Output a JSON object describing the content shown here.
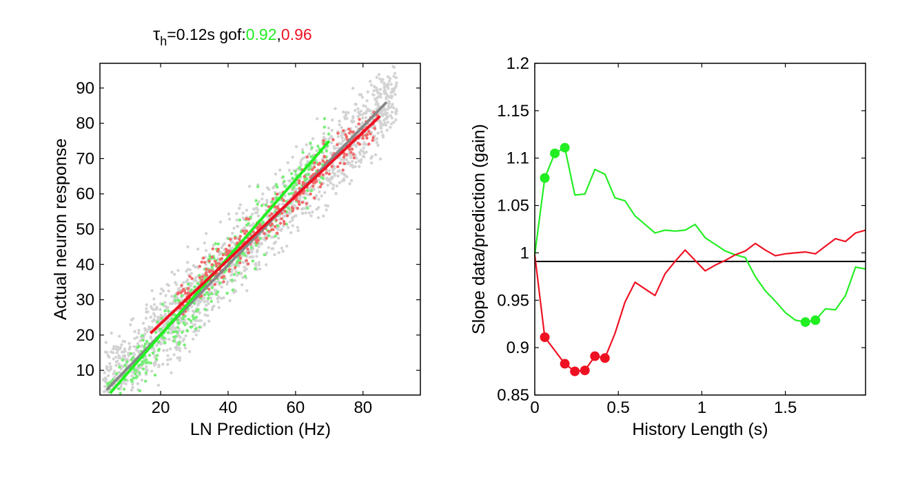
{
  "colors": {
    "green": "#22ee22",
    "red": "#ee1122",
    "gray_fit": "#888888",
    "scatter_gray": "#d3d3d3",
    "scatter_green": "#77ee77",
    "scatter_red": "#f26a6a",
    "baseline": "#000000"
  },
  "title": {
    "tau_symbol": "τ",
    "tau_subscript": "h",
    "tau_value": "=0.12s  gof:",
    "gof_green": "0.92",
    "separator": ",",
    "gof_red": "0.96"
  },
  "chart_data": [
    {
      "type": "scatter",
      "xlabel": "LN Prediction (Hz)",
      "ylabel": "Actual neuron response",
      "xlim": [
        2,
        97
      ],
      "ylim": [
        3,
        97
      ],
      "x_ticks": [
        20,
        40,
        60,
        80
      ],
      "y_ticks": [
        10,
        20,
        30,
        40,
        50,
        60,
        70,
        80,
        90
      ],
      "grid": false,
      "scatter_series": [
        {
          "color_key": "scatter_gray",
          "count": 1600,
          "x_range": [
            3,
            90
          ],
          "slope": 0.97,
          "intercept": 1.5,
          "spread": 8
        },
        {
          "color_key": "scatter_green",
          "count": 420,
          "x_range": [
            3,
            70
          ],
          "slope": 1.09,
          "intercept": -3,
          "spread": 6
        },
        {
          "color_key": "scatter_red",
          "count": 340,
          "x_range": [
            25,
            85
          ],
          "slope": 0.88,
          "intercept": 7,
          "spread": 4
        }
      ],
      "fit_lines": [
        {
          "color_key": "gray_fit",
          "x": [
            4,
            87
          ],
          "y": [
            4.5,
            86
          ]
        },
        {
          "color_key": "green",
          "x": [
            5,
            70
          ],
          "y": [
            3.5,
            75
          ]
        },
        {
          "color_key": "red",
          "x": [
            17,
            85
          ],
          "y": [
            20.5,
            82
          ]
        }
      ]
    },
    {
      "type": "line",
      "xlabel": "History Length (s)",
      "ylabel": "Slope data/prediction (gain)",
      "xlim": [
        0,
        1.98
      ],
      "ylim": [
        0.85,
        1.2
      ],
      "x_ticks": [
        0,
        0.5,
        1,
        1.5
      ],
      "x_tick_labels": [
        "0",
        "0.5",
        "1",
        "1.5"
      ],
      "y_ticks": [
        0.85,
        0.9,
        0.95,
        1,
        1.05,
        1.1,
        1.15,
        1.2
      ],
      "y_tick_labels": [
        "0.85",
        "0.9",
        "0.95",
        "1",
        "1.05",
        "1.1",
        "1.15",
        "1.2"
      ],
      "grid": false,
      "baseline": 0.991,
      "series": [
        {
          "color_key": "green",
          "x": [
            0,
            0.06,
            0.12,
            0.18,
            0.24,
            0.3,
            0.36,
            0.42,
            0.48,
            0.54,
            0.6,
            0.66,
            0.72,
            0.78,
            0.84,
            0.9,
            0.96,
            1.02,
            1.08,
            1.14,
            1.2,
            1.26,
            1.32,
            1.38,
            1.44,
            1.5,
            1.56,
            1.62,
            1.68,
            1.74,
            1.8,
            1.86,
            1.92,
            1.98
          ],
          "y": [
            0.998,
            1.079,
            1.105,
            1.111,
            1.061,
            1.062,
            1.088,
            1.083,
            1.058,
            1.055,
            1.039,
            1.03,
            1.021,
            1.024,
            1.023,
            1.024,
            1.03,
            1.016,
            1.009,
            1.002,
            0.998,
            0.995,
            0.975,
            0.96,
            0.949,
            0.937,
            0.929,
            0.927,
            0.929,
            0.941,
            0.94,
            0.955,
            0.985,
            0.983
          ],
          "marked_x": [
            0.06,
            0.12,
            0.18,
            1.62,
            1.68
          ]
        },
        {
          "color_key": "red",
          "x": [
            0,
            0.06,
            0.12,
            0.18,
            0.24,
            0.3,
            0.36,
            0.42,
            0.48,
            0.54,
            0.6,
            0.66,
            0.72,
            0.78,
            0.84,
            0.9,
            0.96,
            1.02,
            1.08,
            1.14,
            1.2,
            1.26,
            1.32,
            1.38,
            1.44,
            1.5,
            1.56,
            1.62,
            1.68,
            1.74,
            1.8,
            1.86,
            1.92,
            1.98
          ],
          "y": [
            0.998,
            0.911,
            0.897,
            0.883,
            0.875,
            0.876,
            0.891,
            0.889,
            0.915,
            0.948,
            0.969,
            0.962,
            0.955,
            0.978,
            0.991,
            1.003,
            0.992,
            0.981,
            0.987,
            0.992,
            0.998,
            1.002,
            1.01,
            1.003,
            0.997,
            0.999,
            1.0,
            1.001,
            0.999,
            1.007,
            1.015,
            1.012,
            1.021,
            1.024
          ],
          "marked_x": [
            0.06,
            0.18,
            0.24,
            0.3,
            0.36,
            0.42
          ]
        }
      ]
    }
  ]
}
